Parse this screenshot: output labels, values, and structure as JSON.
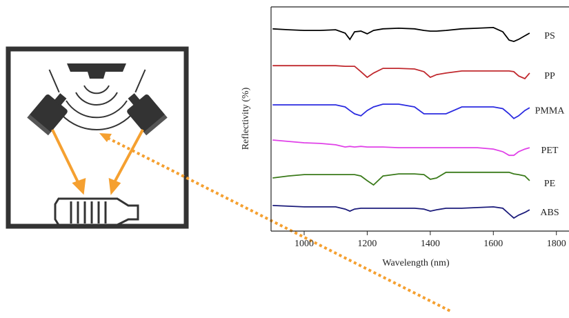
{
  "chart_data": {
    "type": "line",
    "xlabel": "Wavelength (nm)",
    "ylabel": "Reflectivity (%)",
    "x": [
      900,
      950,
      1000,
      1050,
      1100,
      1130,
      1145,
      1160,
      1180,
      1200,
      1220,
      1250,
      1300,
      1350,
      1380,
      1400,
      1420,
      1450,
      1500,
      1550,
      1600,
      1630,
      1650,
      1665,
      1680,
      1700,
      1715
    ],
    "series": [
      {
        "name": "PS",
        "color": "#000000",
        "values": [
          90.2,
          89.8,
          89.5,
          89.5,
          89.8,
          88.3,
          85.5,
          88.9,
          89.2,
          88.0,
          89.5,
          90.2,
          90.5,
          90.2,
          89.5,
          89.2,
          89.2,
          89.5,
          90.2,
          90.5,
          90.8,
          88.9,
          85.2,
          84.6,
          85.5,
          87.1,
          88.3
        ]
      },
      {
        "name": "PP",
        "color": "#c0282d",
        "values": [
          73.8,
          73.8,
          73.8,
          73.8,
          73.8,
          73.5,
          73.5,
          73.5,
          71.1,
          68.6,
          70.5,
          72.6,
          72.6,
          72.3,
          71.1,
          68.6,
          69.8,
          70.5,
          71.4,
          71.4,
          71.4,
          71.4,
          71.4,
          71.1,
          69.2,
          68.0,
          70.5
        ]
      },
      {
        "name": "PMMA",
        "color": "#2a2ae0",
        "values": [
          56.3,
          56.3,
          56.3,
          56.3,
          56.3,
          55.4,
          53.8,
          52.3,
          51.4,
          53.8,
          55.4,
          56.6,
          56.6,
          55.4,
          52.3,
          52.3,
          52.3,
          52.3,
          55.4,
          55.4,
          55.4,
          54.6,
          52.3,
          50.2,
          51.4,
          53.8,
          55.0
        ]
      },
      {
        "name": "PET",
        "color": "#e040e8",
        "values": [
          40.6,
          40.0,
          39.4,
          39.1,
          38.5,
          37.5,
          37.8,
          37.5,
          37.8,
          37.5,
          37.5,
          37.5,
          37.2,
          37.2,
          37.2,
          37.2,
          37.2,
          37.2,
          37.2,
          37.2,
          36.6,
          35.4,
          33.8,
          33.8,
          35.4,
          36.6,
          37.2
        ]
      },
      {
        "name": "PE",
        "color": "#3a7a1a",
        "values": [
          23.7,
          24.6,
          25.2,
          25.2,
          25.2,
          25.2,
          25.2,
          25.2,
          24.6,
          22.5,
          20.6,
          24.6,
          25.5,
          25.5,
          25.2,
          23.1,
          23.7,
          26.2,
          26.2,
          26.2,
          26.2,
          26.2,
          26.2,
          25.5,
          25.2,
          24.6,
          22.5
        ]
      },
      {
        "name": "ABS",
        "color": "#1a1a7a",
        "values": [
          11.4,
          11.1,
          10.8,
          10.8,
          10.8,
          9.8,
          8.9,
          9.8,
          10.2,
          10.2,
          10.2,
          10.2,
          10.2,
          10.2,
          9.8,
          8.9,
          9.5,
          10.2,
          10.2,
          10.5,
          10.8,
          10.2,
          7.7,
          5.8,
          7.1,
          8.3,
          9.5
        ]
      }
    ],
    "xlim": [
      895,
      1840
    ],
    "xticks": [
      1000,
      1200,
      1400,
      1600,
      1800
    ],
    "ylim": [
      0,
      100
    ]
  }
}
